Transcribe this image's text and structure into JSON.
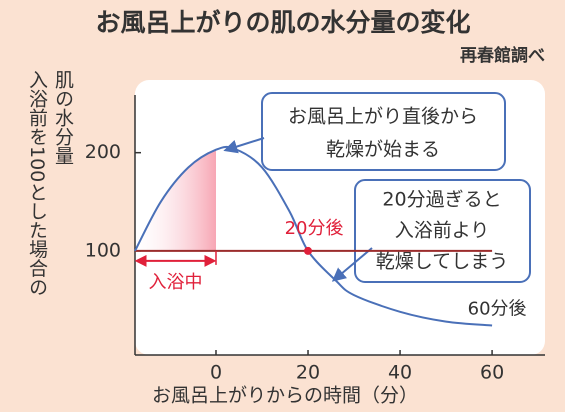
{
  "chart_data": {
    "type": "line",
    "title": "お風呂上がりの肌の水分量の変化",
    "subtitle": "再春館調べ",
    "y_label": [
      "肌の水分量",
      "入浴前を100とした場合の"
    ],
    "x_label": "お風呂上がりからの時間（分）",
    "xlim": [
      -17.6,
      71.5
    ],
    "ylim": [
      -6,
      274
    ],
    "xticks": [
      0,
      20,
      40,
      60
    ],
    "yticks": [
      100,
      200
    ],
    "x": [
      -17.6,
      -12,
      -6,
      0,
      4,
      10,
      16,
      20,
      26,
      30,
      40,
      50,
      60
    ],
    "series": [
      {
        "color": "#4a70b8",
        "values": [
          100,
          150,
          185,
          203,
          204,
          185,
          140,
          100,
          70,
          55,
          38,
          28,
          24
        ]
      }
    ],
    "baseline": {
      "value": 100,
      "color": "#9b2c2c"
    },
    "marker": {
      "x": 20,
      "y": 100,
      "color": "#e0203a"
    },
    "shade_color": "#f7a6b4",
    "bath_label": "入浴中",
    "point_labels": [
      "20分後",
      "60分後"
    ],
    "callouts": [
      [
        "お風呂上がり直後から",
        "乾燥が始まる"
      ],
      [
        "20分過ぎると",
        "入浴前より",
        "乾燥してしまう"
      ]
    ]
  }
}
